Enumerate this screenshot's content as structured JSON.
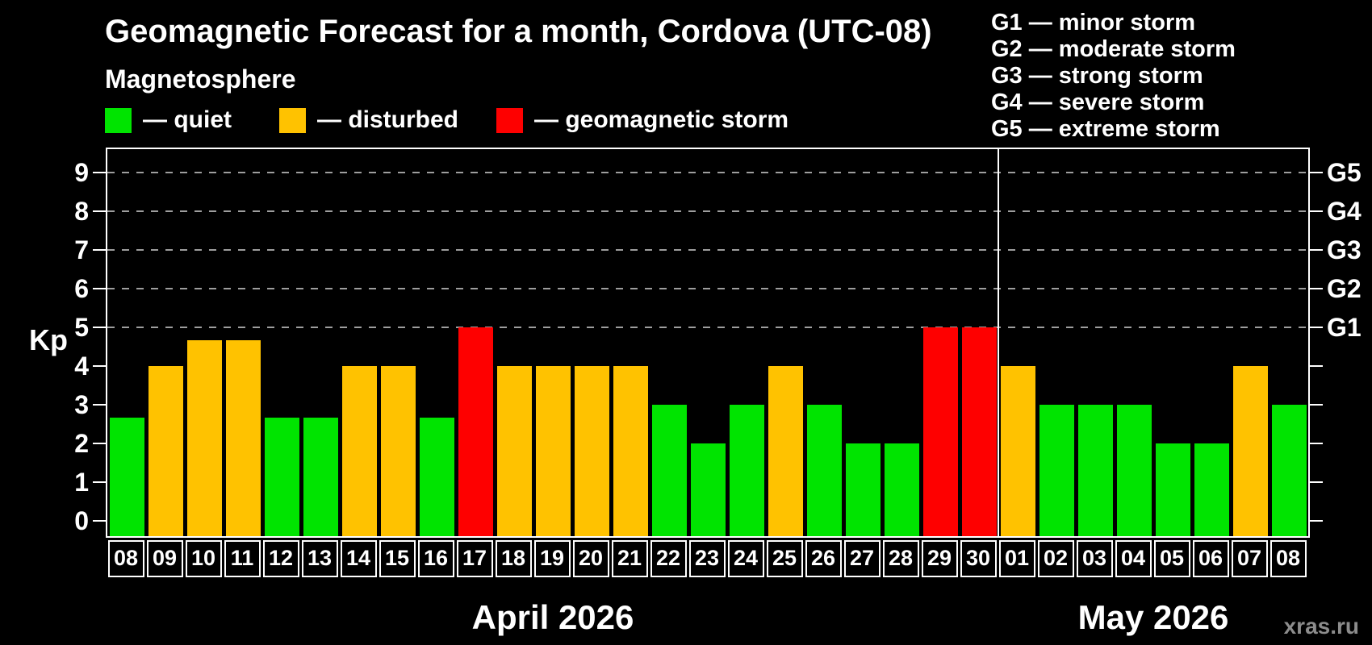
{
  "legend": {
    "title": "Magnetosphere",
    "items": [
      {
        "name": "quiet",
        "label": "— quiet",
        "color": "#00e400"
      },
      {
        "name": "disturbed",
        "label": "— disturbed",
        "color": "#ffc200"
      },
      {
        "name": "geomagnetic-storm",
        "label": "— geomagnetic storm",
        "color": "#fe0000"
      }
    ]
  },
  "g_legend": {
    "items": [
      "G1 — minor storm",
      "G2 — moderate storm",
      "G3 — strong storm",
      "G4 — severe storm",
      "G5 — extreme storm"
    ]
  },
  "watermark": "xras.ru",
  "chart_data": {
    "type": "bar",
    "title": "Geomagnetic Forecast for a month, Cordova (UTC-08)",
    "ylabel": "Kp",
    "ylim": [
      -0.4,
      9.6
    ],
    "yticks": [
      0,
      1,
      2,
      3,
      4,
      5,
      6,
      7,
      8,
      9
    ],
    "gridlines": [
      5,
      6,
      7,
      8,
      9
    ],
    "grid": "dashed horizontal at Kp 5-9 only",
    "right_axis_labels": [
      {
        "kp": 5,
        "label": "G1"
      },
      {
        "kp": 6,
        "label": "G2"
      },
      {
        "kp": 7,
        "label": "G3"
      },
      {
        "kp": 8,
        "label": "G4"
      },
      {
        "kp": 9,
        "label": "G5"
      }
    ],
    "status_colors": {
      "quiet": "#00e400",
      "disturbed": "#ffc200",
      "storm": "#fe0000"
    },
    "months": [
      {
        "label": "April 2026",
        "days": 23
      },
      {
        "label": "May 2026",
        "days": 8
      }
    ],
    "bars": [
      {
        "day": "08",
        "kp": 2.67,
        "status": "quiet"
      },
      {
        "day": "09",
        "kp": 4,
        "status": "disturbed"
      },
      {
        "day": "10",
        "kp": 4.67,
        "status": "disturbed"
      },
      {
        "day": "11",
        "kp": 4.67,
        "status": "disturbed"
      },
      {
        "day": "12",
        "kp": 2.67,
        "status": "quiet"
      },
      {
        "day": "13",
        "kp": 2.67,
        "status": "quiet"
      },
      {
        "day": "14",
        "kp": 4,
        "status": "disturbed"
      },
      {
        "day": "15",
        "kp": 4,
        "status": "disturbed"
      },
      {
        "day": "16",
        "kp": 2.67,
        "status": "quiet"
      },
      {
        "day": "17",
        "kp": 5,
        "status": "storm"
      },
      {
        "day": "18",
        "kp": 4,
        "status": "disturbed"
      },
      {
        "day": "19",
        "kp": 4,
        "status": "disturbed"
      },
      {
        "day": "20",
        "kp": 4,
        "status": "disturbed"
      },
      {
        "day": "21",
        "kp": 4,
        "status": "disturbed"
      },
      {
        "day": "22",
        "kp": 3,
        "status": "quiet"
      },
      {
        "day": "23",
        "kp": 2,
        "status": "quiet"
      },
      {
        "day": "24",
        "kp": 3,
        "status": "quiet"
      },
      {
        "day": "25",
        "kp": 4,
        "status": "disturbed"
      },
      {
        "day": "26",
        "kp": 3,
        "status": "quiet"
      },
      {
        "day": "27",
        "kp": 2,
        "status": "quiet"
      },
      {
        "day": "28",
        "kp": 2,
        "status": "quiet"
      },
      {
        "day": "29",
        "kp": 5,
        "status": "storm"
      },
      {
        "day": "30",
        "kp": 5,
        "status": "storm"
      },
      {
        "day": "01",
        "kp": 4,
        "status": "disturbed"
      },
      {
        "day": "02",
        "kp": 3,
        "status": "quiet"
      },
      {
        "day": "03",
        "kp": 3,
        "status": "quiet"
      },
      {
        "day": "04",
        "kp": 3,
        "status": "quiet"
      },
      {
        "day": "05",
        "kp": 2,
        "status": "quiet"
      },
      {
        "day": "06",
        "kp": 2,
        "status": "quiet"
      },
      {
        "day": "07",
        "kp": 4,
        "status": "disturbed"
      },
      {
        "day": "08",
        "kp": 3,
        "status": "quiet"
      }
    ]
  }
}
